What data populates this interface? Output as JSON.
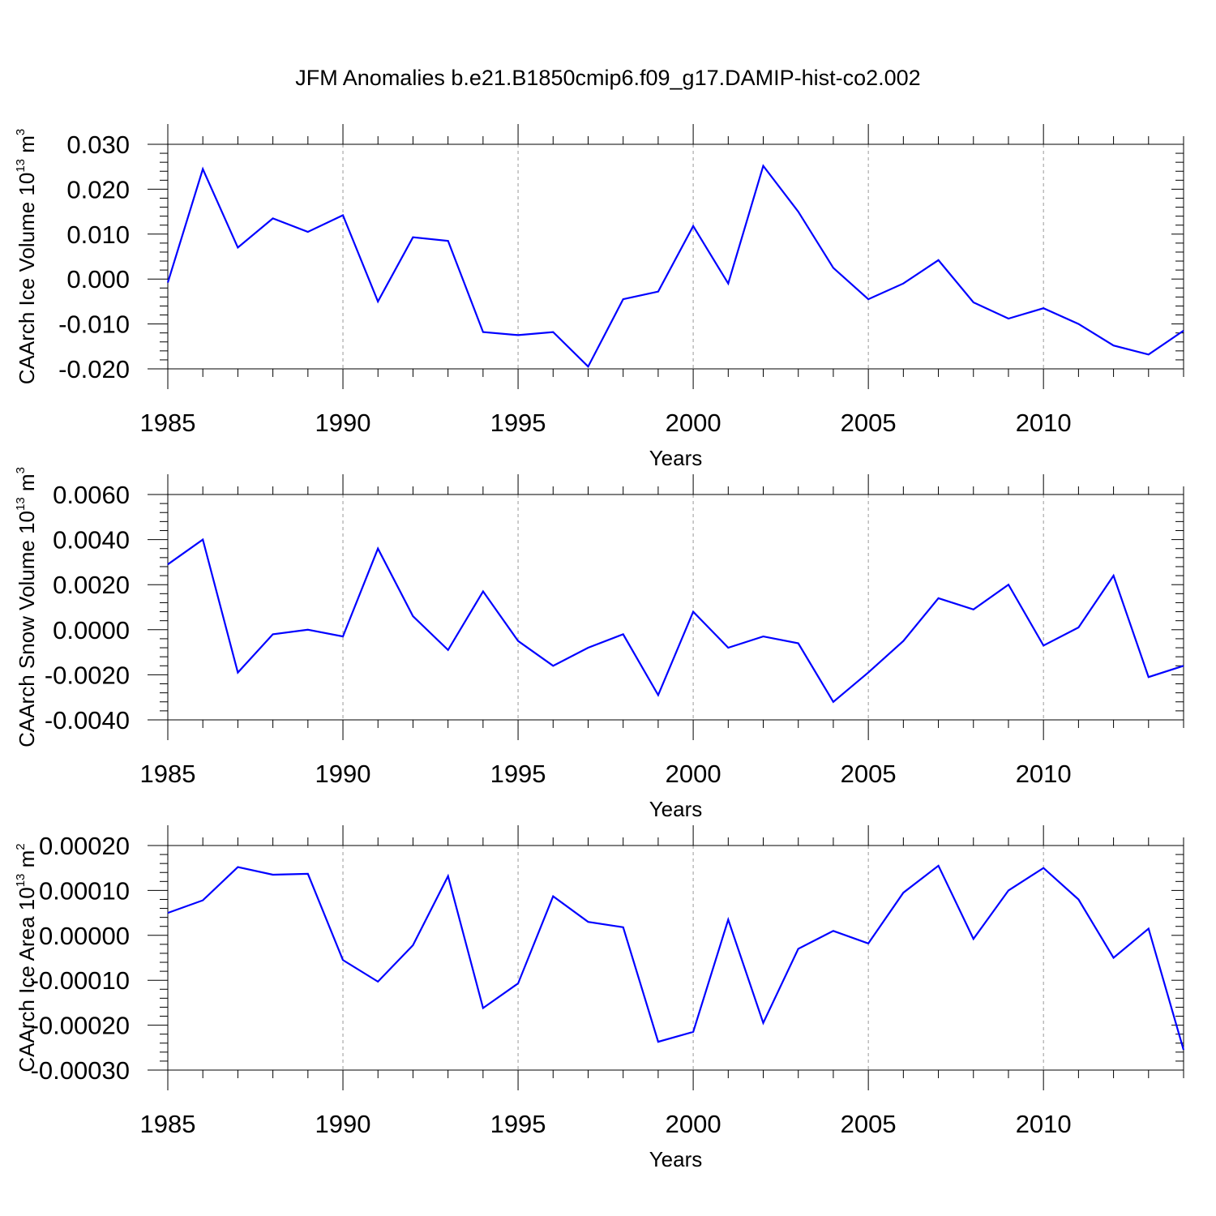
{
  "title": "JFM Anomalies b.e21.B1850cmip6.f09_g17.DAMIP-hist-co2.002",
  "chart_data": [
    {
      "type": "line",
      "title": "JFM Anomalies b.e21.B1850cmip6.f09_g17.DAMIP-hist-co2.002",
      "xlabel": "Years",
      "ylabel_main": "CAArch Ice Volume 10",
      "ylabel_sup": "13",
      "ylabel_unit": " m",
      "ylabel_unit_sup": "3",
      "xlim": [
        1985,
        2014
      ],
      "ylim": [
        -0.02,
        0.03
      ],
      "xticks": [
        1985,
        1990,
        1995,
        2000,
        2005,
        2010
      ],
      "xtick_labels": [
        "1985",
        "1990",
        "1995",
        "2000",
        "2005",
        "2010"
      ],
      "yticks": [
        -0.02,
        -0.01,
        0.0,
        0.01,
        0.02,
        0.03
      ],
      "ytick_labels": [
        "-0.020",
        "-0.010",
        "0.000",
        "0.010",
        "0.020",
        "0.030"
      ],
      "minor_y_step": 0.002,
      "x": [
        1985,
        1986,
        1987,
        1988,
        1989,
        1990,
        1991,
        1992,
        1993,
        1994,
        1995,
        1996,
        1997,
        1998,
        1999,
        2000,
        2001,
        2002,
        2003,
        2004,
        2005,
        2006,
        2007,
        2008,
        2009,
        2010,
        2011,
        2012,
        2013,
        2014
      ],
      "series": [
        {
          "name": "ice_volume",
          "color": "#0000ff",
          "values": [
            -0.0008,
            0.0245,
            0.007,
            0.0135,
            0.0105,
            0.0142,
            -0.005,
            0.0093,
            0.0085,
            -0.0118,
            -0.0125,
            -0.0118,
            -0.0195,
            -0.0045,
            -0.0028,
            0.0118,
            -0.001,
            0.0252,
            0.015,
            0.0025,
            -0.0045,
            -0.001,
            0.0042,
            -0.0052,
            -0.0088,
            -0.0065,
            -0.01,
            -0.0148,
            -0.0168,
            -0.0115
          ]
        }
      ]
    },
    {
      "type": "line",
      "xlabel": "Years",
      "ylabel_main": "CAArch Snow Volume 10",
      "ylabel_sup": "13",
      "ylabel_unit": " m",
      "ylabel_unit_sup": "3",
      "xlim": [
        1985,
        2014
      ],
      "ylim": [
        -0.004,
        0.006
      ],
      "xticks": [
        1985,
        1990,
        1995,
        2000,
        2005,
        2010
      ],
      "xtick_labels": [
        "1985",
        "1990",
        "1995",
        "2000",
        "2005",
        "2010"
      ],
      "yticks": [
        -0.004,
        -0.002,
        0.0,
        0.002,
        0.004,
        0.006
      ],
      "ytick_labels": [
        "-0.0040",
        "-0.0020",
        "0.0000",
        "0.0020",
        "0.0040",
        "0.0060"
      ],
      "minor_y_step": 0.0004,
      "x": [
        1985,
        1986,
        1987,
        1988,
        1989,
        1990,
        1991,
        1992,
        1993,
        1994,
        1995,
        1996,
        1997,
        1998,
        1999,
        2000,
        2001,
        2002,
        2003,
        2004,
        2005,
        2006,
        2007,
        2008,
        2009,
        2010,
        2011,
        2012,
        2013,
        2014
      ],
      "series": [
        {
          "name": "snow_volume",
          "color": "#0000ff",
          "values": [
            0.0029,
            0.004,
            -0.0019,
            -0.0002,
            0.0,
            -0.0003,
            0.0036,
            0.0006,
            -0.0009,
            0.0017,
            -0.0005,
            -0.0016,
            -0.0008,
            -0.0002,
            -0.0029,
            0.0008,
            -0.0008,
            -0.0003,
            -0.0006,
            -0.0032,
            -0.0019,
            -0.0005,
            0.0014,
            0.0009,
            0.002,
            -0.0007,
            0.0001,
            0.0024,
            -0.0021,
            -0.0016
          ]
        }
      ]
    },
    {
      "type": "line",
      "xlabel": "Years",
      "ylabel_main": "CAArch Ice Area 10",
      "ylabel_sup": "13",
      "ylabel_unit": " m",
      "ylabel_unit_sup": "2",
      "xlim": [
        1985,
        2014
      ],
      "ylim": [
        -0.0003,
        0.0002
      ],
      "xticks": [
        1985,
        1990,
        1995,
        2000,
        2005,
        2010
      ],
      "xtick_labels": [
        "1985",
        "1990",
        "1995",
        "2000",
        "2005",
        "2010"
      ],
      "yticks": [
        -0.0003,
        -0.0002,
        -0.0001,
        0.0,
        0.0001,
        0.0002
      ],
      "ytick_labels": [
        "-0.00030",
        "-0.00020",
        "-0.00010",
        "0.00000",
        "0.00010",
        "0.00020"
      ],
      "minor_y_step": 2e-05,
      "x": [
        1985,
        1986,
        1987,
        1988,
        1989,
        1990,
        1991,
        1992,
        1993,
        1994,
        1995,
        1996,
        1997,
        1998,
        1999,
        2000,
        2001,
        2002,
        2003,
        2004,
        2005,
        2006,
        2007,
        2008,
        2009,
        2010,
        2011,
        2012,
        2013,
        2014
      ],
      "series": [
        {
          "name": "ice_area",
          "color": "#0000ff",
          "values": [
            5e-05,
            7.8e-05,
            0.000152,
            0.000135,
            0.000137,
            -5.5e-05,
            -0.000103,
            -2.2e-05,
            0.000132,
            -0.000162,
            -0.000107,
            8.7e-05,
            3e-05,
            1.8e-05,
            -0.000237,
            -0.000215,
            3.5e-05,
            -0.000195,
            -3e-05,
            1e-05,
            -1.8e-05,
            9.5e-05,
            0.000155,
            -8e-06,
            0.0001,
            0.00015,
            8e-05,
            -5e-05,
            1.5e-05,
            -0.000255
          ]
        }
      ]
    }
  ]
}
